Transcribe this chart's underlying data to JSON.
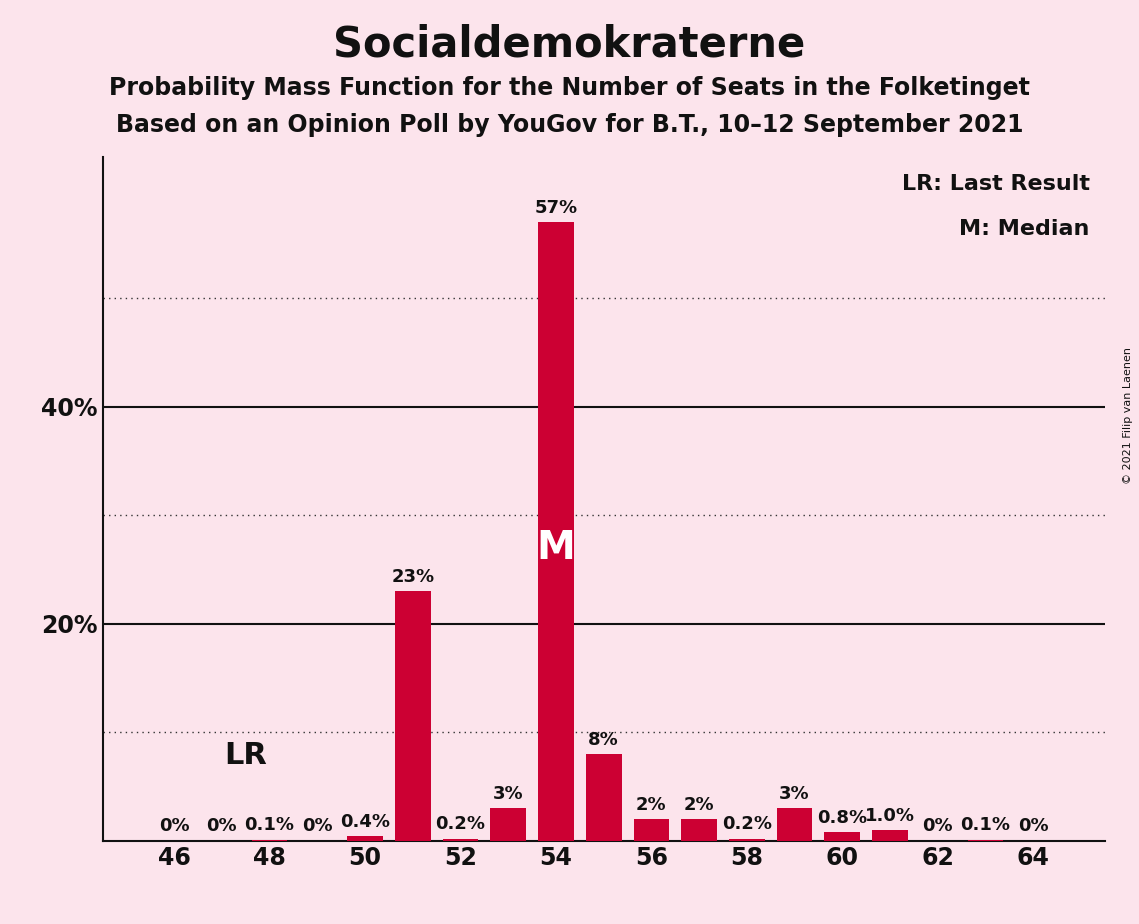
{
  "title": "Socialdemokraterne",
  "subtitle1": "Probability Mass Function for the Number of Seats in the Folketinget",
  "subtitle2": "Based on an Opinion Poll by YouGov for B.T., 10–12 September 2021",
  "copyright": "© 2021 Filip van Laenen",
  "legend_lr": "LR: Last Result",
  "legend_m": "M: Median",
  "background_color": "#fce4ec",
  "bar_color": "#cc0033",
  "seats": [
    46,
    47,
    48,
    49,
    50,
    51,
    52,
    53,
    54,
    55,
    56,
    57,
    58,
    59,
    60,
    61,
    62,
    63,
    64
  ],
  "probs": [
    0.0,
    0.0,
    0.1,
    0.0,
    0.4,
    23.0,
    0.2,
    3.0,
    57.0,
    8.0,
    2.0,
    2.0,
    0.2,
    3.0,
    0.8,
    1.0,
    0.0,
    0.1,
    0.0
  ],
  "prob_labels": [
    "0%",
    "0%",
    "0.1%",
    "0%",
    "0.4%",
    "23%",
    "0.2%",
    "3%",
    "57%",
    "8%",
    "2%",
    "2%",
    "0.2%",
    "3%",
    "0.8%",
    "1.0%",
    "0%",
    "0.1%",
    "0%"
  ],
  "last_result_seat": 48,
  "median_seat": 54,
  "dotted_yticks": [
    10,
    30,
    50
  ],
  "solid_yticks": [
    20,
    40
  ],
  "xtick_seats": [
    46,
    48,
    50,
    52,
    54,
    56,
    58,
    60,
    62,
    64
  ],
  "xlim": [
    44.5,
    65.5
  ],
  "ylim": [
    0,
    63
  ],
  "title_fontsize": 30,
  "subtitle_fontsize": 17,
  "ytick_fontsize": 17,
  "xtick_fontsize": 17,
  "label_fontsize": 13,
  "legend_fontsize": 16,
  "lr_fontsize": 22,
  "m_fontsize": 28,
  "bar_width": 0.75
}
